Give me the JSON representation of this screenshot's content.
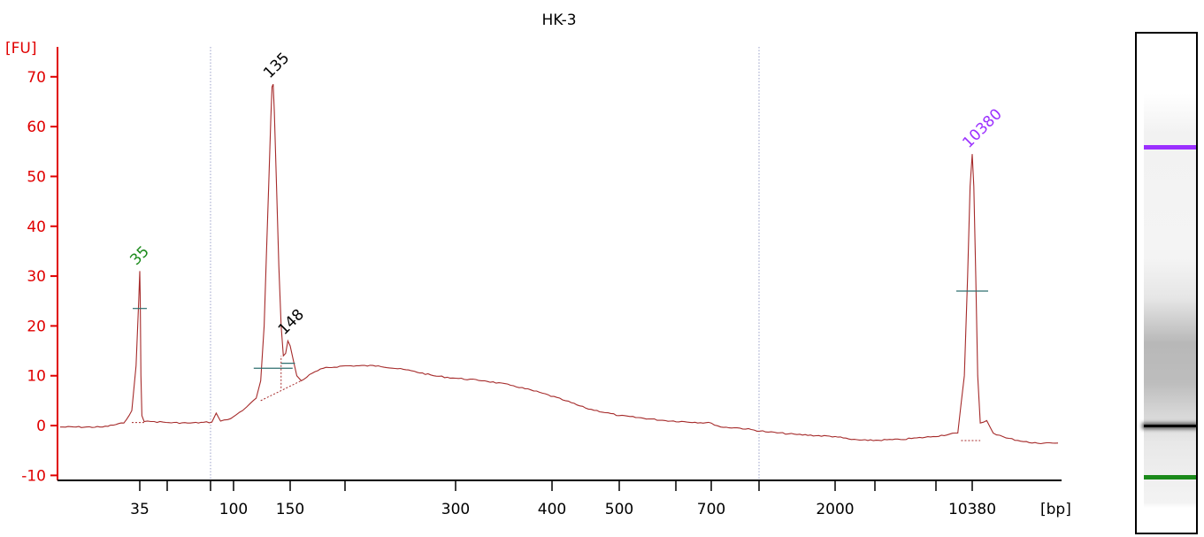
{
  "chart_data": {
    "type": "line",
    "title": "HK-3",
    "ylabel": "[FU]",
    "xlabel": "[bp]",
    "ylim": [
      -11,
      76
    ],
    "y_ticks": [
      -10,
      0,
      10,
      20,
      30,
      40,
      50,
      60,
      70
    ],
    "x_tick_labels": [
      "35",
      "",
      "",
      "100",
      "150",
      "",
      "300",
      "400",
      "500",
      "",
      "700",
      "",
      "2000",
      "",
      "",
      "10380"
    ],
    "colors": {
      "trace": "#a52a2a",
      "axis": "#e00000",
      "marker_low": "#1a8a1a",
      "marker_high": "#9b30ff",
      "sample_peak": "#000000",
      "gridline": "#9aa0c8"
    },
    "peak_labels": [
      {
        "label": "35",
        "x": 35,
        "color_key": "marker_low"
      },
      {
        "label": "135",
        "x": 135,
        "color_key": "sample_peak"
      },
      {
        "label": "148",
        "x": 148,
        "color_key": "sample_peak"
      },
      {
        "label": "10380",
        "x": 10380,
        "color_key": "marker_high"
      }
    ],
    "reference_lines": [
      {
        "x_between": [
          "40",
          "100"
        ],
        "pos": 0.5
      },
      {
        "x_between": [
          "700",
          "2000"
        ],
        "pos": 0.35
      }
    ],
    "series": [
      {
        "values": [
          [
            20,
            -0.3
          ],
          [
            28,
            -0.3
          ],
          [
            32,
            0.5
          ],
          [
            33.5,
            3
          ],
          [
            34.3,
            12
          ],
          [
            34.8,
            25
          ],
          [
            35,
            31
          ],
          [
            35.3,
            26
          ],
          [
            35.8,
            10
          ],
          [
            36.5,
            2
          ],
          [
            38,
            0.8
          ],
          [
            45,
            0.8
          ],
          [
            55,
            0.6
          ],
          [
            70,
            0.5
          ],
          [
            85,
            0.7
          ],
          [
            88,
            2.5
          ],
          [
            91,
            0.9
          ],
          [
            96,
            1.2
          ],
          [
            100,
            1.8
          ],
          [
            108,
            3
          ],
          [
            115,
            4.5
          ],
          [
            120,
            5.5
          ],
          [
            124,
            9
          ],
          [
            127,
            20
          ],
          [
            129,
            34
          ],
          [
            131,
            48
          ],
          [
            133,
            62
          ],
          [
            134,
            68
          ],
          [
            135,
            68.5
          ],
          [
            136,
            63
          ],
          [
            138,
            48
          ],
          [
            140,
            32
          ],
          [
            142,
            20
          ],
          [
            144,
            14
          ],
          [
            146,
            14.5
          ],
          [
            148,
            17
          ],
          [
            150,
            16
          ],
          [
            153,
            13
          ],
          [
            156,
            10
          ],
          [
            160,
            9
          ],
          [
            170,
            10.5
          ],
          [
            180,
            11.5
          ],
          [
            200,
            12
          ],
          [
            230,
            12
          ],
          [
            260,
            11
          ],
          [
            280,
            10
          ],
          [
            300,
            9.5
          ],
          [
            330,
            9
          ],
          [
            360,
            8
          ],
          [
            390,
            6.5
          ],
          [
            420,
            5
          ],
          [
            450,
            3.5
          ],
          [
            500,
            2
          ],
          [
            600,
            1
          ],
          [
            700,
            0.5
          ],
          [
            800,
            -0.3
          ],
          [
            1000,
            -0.5
          ],
          [
            1300,
            -1.3
          ],
          [
            1600,
            -1.8
          ],
          [
            2000,
            -2.2
          ],
          [
            2500,
            -2.5
          ],
          [
            3000,
            -2.8
          ],
          [
            4000,
            -3
          ],
          [
            6000,
            -2.8
          ],
          [
            8000,
            -2.2
          ],
          [
            9500,
            -1.5
          ],
          [
            9900,
            10
          ],
          [
            10100,
            30
          ],
          [
            10250,
            48
          ],
          [
            10380,
            54.5
          ],
          [
            10500,
            48
          ],
          [
            10650,
            30
          ],
          [
            10800,
            10
          ],
          [
            11000,
            0.5
          ],
          [
            11500,
            1
          ],
          [
            12000,
            -1.5
          ],
          [
            13000,
            -2.5
          ],
          [
            15000,
            -3.5
          ],
          [
            17000,
            -3.5
          ]
        ]
      }
    ],
    "gel": {
      "bands": [
        {
          "pos": 0.223,
          "color_key": "marker_high"
        },
        {
          "pos": 0.783,
          "color_key": "sample_peak"
        },
        {
          "pos": 0.884,
          "color_key": "marker_low"
        }
      ]
    }
  }
}
